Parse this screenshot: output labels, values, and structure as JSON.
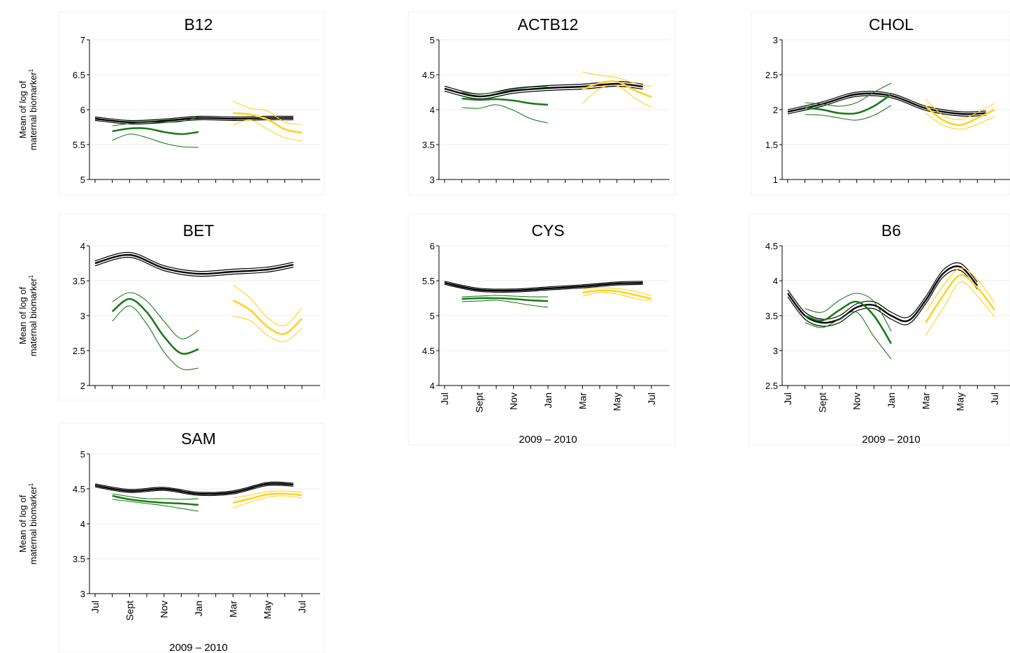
{
  "figure": {
    "ylabel_line1": "Mean of log of",
    "ylabel_line2": "maternal biomarker",
    "ylabel_sup": "1",
    "year_label": "2009 – 2010",
    "month_labels": [
      "Jul",
      "Sept",
      "Nov",
      "Jan",
      "Mar",
      "May",
      "Jul"
    ],
    "colors": {
      "overall": "#000000",
      "group_a": "#1a7a1a",
      "group_b": "#ffd21f"
    }
  },
  "chart_data": [
    {
      "type": "line",
      "title": "B12",
      "yticks": [
        "5",
        "5.5",
        "6",
        "6.5",
        "7"
      ],
      "ylim": [
        5,
        7
      ],
      "xlim": [
        0,
        12
      ],
      "series": [
        {
          "key": "overall",
          "x": [
            0,
            2,
            4,
            6,
            8,
            10,
            11.5
          ],
          "y": [
            5.87,
            5.82,
            5.84,
            5.88,
            5.87,
            5.88,
            5.88
          ],
          "ci": 0.025
        },
        {
          "key": "group_a",
          "x": [
            1,
            2,
            3,
            4,
            5,
            6
          ],
          "y": [
            5.69,
            5.73,
            5.73,
            5.68,
            5.65,
            5.68
          ],
          "lower": [
            5.56,
            5.65,
            5.6,
            5.52,
            5.47,
            5.46
          ],
          "upper": [
            5.77,
            5.8,
            5.82,
            5.82,
            5.83,
            5.9
          ]
        },
        {
          "key": "group_b",
          "x": [
            8,
            9,
            10,
            11,
            12
          ],
          "y": [
            5.95,
            5.93,
            5.86,
            5.72,
            5.67
          ],
          "lower": [
            5.78,
            5.85,
            5.72,
            5.6,
            5.55
          ],
          "upper": [
            6.12,
            6.02,
            5.98,
            5.82,
            5.79
          ]
        }
      ]
    },
    {
      "type": "line",
      "title": "ACTB12",
      "yticks": [
        "3",
        "3.5",
        "4",
        "4.5",
        "5"
      ],
      "ylim": [
        3,
        5
      ],
      "xlim": [
        0,
        12
      ],
      "series": [
        {
          "key": "overall",
          "x": [
            0,
            2,
            4,
            6,
            8,
            10,
            11.5
          ],
          "y": [
            4.3,
            4.19,
            4.27,
            4.31,
            4.33,
            4.37,
            4.33
          ],
          "ci": 0.035
        },
        {
          "key": "group_a",
          "x": [
            1,
            2,
            3,
            4,
            5,
            6
          ],
          "y": [
            4.16,
            4.14,
            4.15,
            4.13,
            4.09,
            4.07
          ],
          "lower": [
            4.03,
            4.02,
            4.07,
            3.99,
            3.87,
            3.81
          ],
          "upper": [
            4.25,
            4.22,
            4.25,
            4.29,
            4.32,
            4.33
          ]
        },
        {
          "key": "group_b",
          "x": [
            8,
            9,
            10,
            11,
            12
          ],
          "y": [
            4.29,
            4.38,
            4.4,
            4.28,
            4.18
          ],
          "lower": [
            4.09,
            4.3,
            4.34,
            4.17,
            4.03
          ],
          "upper": [
            4.54,
            4.49,
            4.46,
            4.38,
            4.33
          ]
        }
      ]
    },
    {
      "type": "line",
      "title": "CHOL",
      "yticks": [
        "1",
        "1.5",
        "2",
        "2.5",
        "3"
      ],
      "ylim": [
        1,
        3
      ],
      "xlim": [
        0,
        12
      ],
      "series": [
        {
          "key": "overall",
          "x": [
            0,
            2,
            4,
            6,
            8,
            10,
            11.5
          ],
          "y": [
            1.97,
            2.08,
            2.22,
            2.2,
            2.02,
            1.94,
            1.95
          ],
          "ci": 0.03
        },
        {
          "key": "group_a",
          "x": [
            1,
            2,
            3,
            4,
            5,
            6
          ],
          "y": [
            2.03,
            2.0,
            1.95,
            1.95,
            2.05,
            2.22
          ],
          "lower": [
            1.93,
            1.92,
            1.88,
            1.85,
            1.92,
            2.06
          ],
          "upper": [
            2.1,
            2.08,
            2.05,
            2.1,
            2.25,
            2.38
          ]
        },
        {
          "key": "group_b",
          "x": [
            8,
            9,
            10,
            11,
            12
          ],
          "y": [
            2.05,
            1.85,
            1.78,
            1.88,
            2.0
          ],
          "lower": [
            1.95,
            1.78,
            1.72,
            1.79,
            1.9
          ],
          "upper": [
            2.15,
            1.92,
            1.86,
            1.96,
            2.09
          ]
        }
      ]
    },
    {
      "type": "line",
      "title": "BET",
      "yticks": [
        "2",
        "2.5",
        "3",
        "3.5",
        "4"
      ],
      "ylim": [
        2,
        4
      ],
      "xlim": [
        0,
        12
      ],
      "series": [
        {
          "key": "overall",
          "x": [
            0,
            2,
            4,
            6,
            8,
            10,
            11.5
          ],
          "y": [
            3.75,
            3.87,
            3.68,
            3.6,
            3.63,
            3.66,
            3.73
          ],
          "ci": 0.035
        },
        {
          "key": "group_a",
          "x": [
            1,
            2,
            3,
            4,
            5,
            6
          ],
          "y": [
            3.06,
            3.24,
            3.05,
            2.7,
            2.46,
            2.52
          ],
          "lower": [
            2.92,
            3.14,
            2.88,
            2.48,
            2.24,
            2.25
          ],
          "upper": [
            3.2,
            3.33,
            3.21,
            2.92,
            2.67,
            2.79
          ]
        },
        {
          "key": "group_b",
          "x": [
            8,
            9,
            10,
            11,
            12
          ],
          "y": [
            3.22,
            3.08,
            2.84,
            2.74,
            2.96
          ],
          "lower": [
            2.99,
            2.93,
            2.72,
            2.63,
            2.82
          ],
          "upper": [
            3.44,
            3.25,
            2.97,
            2.86,
            3.11
          ]
        }
      ]
    },
    {
      "type": "line",
      "title": "CYS",
      "yticks": [
        "4",
        "4.5",
        "5",
        "5.5",
        "6"
      ],
      "ylim": [
        4,
        6
      ],
      "xlim": [
        0,
        12
      ],
      "series": [
        {
          "key": "overall",
          "x": [
            0,
            2,
            4,
            6,
            8,
            10,
            11.5
          ],
          "y": [
            5.47,
            5.37,
            5.36,
            5.39,
            5.42,
            5.46,
            5.47
          ],
          "ci": 0.022
        },
        {
          "key": "group_a",
          "x": [
            1,
            2,
            3,
            4,
            5,
            6
          ],
          "y": [
            5.24,
            5.25,
            5.25,
            5.24,
            5.22,
            5.21
          ],
          "lower": [
            5.2,
            5.21,
            5.22,
            5.19,
            5.15,
            5.12
          ],
          "upper": [
            5.27,
            5.28,
            5.29,
            5.28,
            5.27,
            5.27
          ]
        },
        {
          "key": "group_b",
          "x": [
            8,
            9,
            10,
            11,
            12
          ],
          "y": [
            5.33,
            5.36,
            5.35,
            5.3,
            5.24
          ],
          "lower": [
            5.28,
            5.33,
            5.31,
            5.25,
            5.21
          ],
          "upper": [
            5.38,
            5.4,
            5.39,
            5.35,
            5.29
          ]
        }
      ]
    },
    {
      "type": "line",
      "title": "B6",
      "yticks": [
        "2.5",
        "3",
        "3.5",
        "4",
        "4.5"
      ],
      "ylim": [
        2.5,
        4.5
      ],
      "xlim": [
        0,
        12
      ],
      "series": [
        {
          "key": "overall",
          "x": [
            0,
            1,
            2,
            3,
            4,
            5,
            6,
            7,
            8,
            9,
            10,
            11
          ],
          "y": [
            3.82,
            3.5,
            3.4,
            3.45,
            3.62,
            3.65,
            3.5,
            3.43,
            3.72,
            4.1,
            4.2,
            3.93
          ],
          "ci": 0.05
        },
        {
          "key": "group_a",
          "x": [
            1,
            2,
            3,
            4,
            5,
            6
          ],
          "y": [
            3.5,
            3.43,
            3.58,
            3.7,
            3.5,
            3.1
          ],
          "lower": [
            3.4,
            3.33,
            3.45,
            3.55,
            3.2,
            2.88
          ],
          "upper": [
            3.6,
            3.55,
            3.72,
            3.82,
            3.7,
            3.28
          ]
        },
        {
          "key": "group_b",
          "x": [
            8,
            9,
            10,
            11,
            12
          ],
          "y": [
            3.4,
            3.78,
            4.08,
            3.9,
            3.58
          ],
          "lower": [
            3.22,
            3.6,
            3.98,
            3.78,
            3.48
          ],
          "upper": [
            3.55,
            3.92,
            4.18,
            4.02,
            3.68
          ]
        }
      ]
    },
    {
      "type": "line",
      "title": "SAM",
      "yticks": [
        "3",
        "3.5",
        "4",
        "4.5",
        "5"
      ],
      "ylim": [
        3,
        5
      ],
      "xlim": [
        0,
        12
      ],
      "series": [
        {
          "key": "overall",
          "x": [
            0,
            2,
            4,
            6,
            8,
            10,
            11.5
          ],
          "y": [
            4.55,
            4.47,
            4.5,
            4.43,
            4.45,
            4.57,
            4.56
          ],
          "ci": 0.022
        },
        {
          "key": "group_a",
          "x": [
            1,
            2,
            3,
            4,
            5,
            6
          ],
          "y": [
            4.4,
            4.35,
            4.32,
            4.3,
            4.29,
            4.27
          ],
          "lower": [
            4.35,
            4.32,
            4.29,
            4.26,
            4.22,
            4.18
          ],
          "upper": [
            4.43,
            4.39,
            4.36,
            4.36,
            4.35,
            4.36
          ]
        },
        {
          "key": "group_b",
          "x": [
            8,
            9,
            10,
            11,
            12
          ],
          "y": [
            4.3,
            4.36,
            4.42,
            4.43,
            4.41
          ],
          "lower": [
            4.23,
            4.31,
            4.38,
            4.4,
            4.37
          ],
          "upper": [
            4.37,
            4.41,
            4.46,
            4.47,
            4.45
          ]
        }
      ]
    }
  ]
}
